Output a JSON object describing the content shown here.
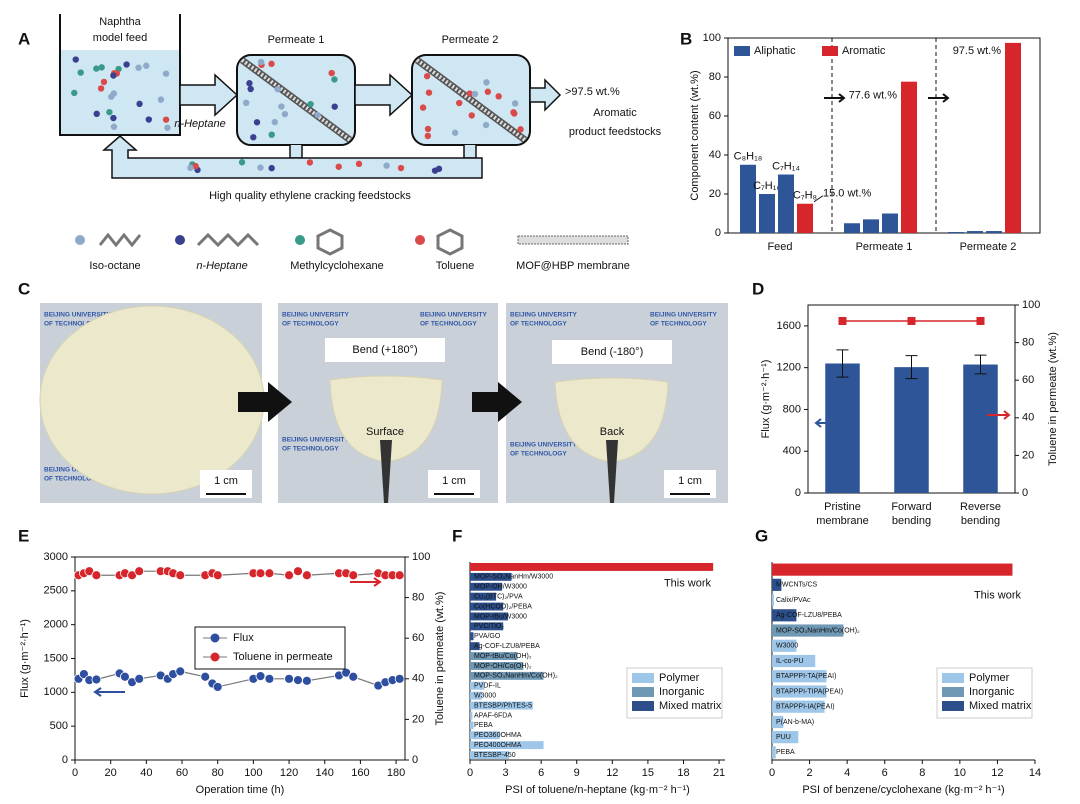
{
  "panel_a": {
    "label": "A",
    "feed": [
      "Naphtha",
      "model feed"
    ],
    "permeate_1": "Permeate 1",
    "permeate_2": "Permeate 2",
    "arrow_label": "n-Heptane",
    "product": [
      ">97.5 wt.%",
      "Aromatic",
      "product feedstocks"
    ],
    "recycle": "High quality ethylene cracking feedstocks",
    "legend": [
      "Iso-octane",
      "n-Heptane",
      "Methylcyclohexane",
      "Toluene",
      "MOF@HBP membrane"
    ]
  },
  "panel_c": {
    "label": "C",
    "watermark": [
      "BEIJING UNIVERSITY",
      "OF TECHNOLOGY"
    ],
    "photos": [
      {
        "scale": "1 cm"
      },
      {
        "title": "Bend (+180°)",
        "caption": "Surface",
        "scale": "1 cm"
      },
      {
        "title": "Bend (-180°)",
        "caption": "Back",
        "scale": "1 cm"
      }
    ]
  },
  "chart_data": [
    {
      "label": "B",
      "type": "grouped_bar",
      "ylabel": "Component content (wt.%)",
      "ylim": [
        0,
        100
      ],
      "yticks": [
        0,
        20,
        40,
        60,
        80,
        100
      ],
      "categories": [
        "Feed",
        "Permeate 1",
        "Permeate 2"
      ],
      "series": [
        {
          "name": "Aliphatic",
          "color": "#2e5597",
          "values": [
            [
              35,
              20,
              30
            ],
            [
              5,
              7,
              10
            ],
            [
              0.5,
              1,
              1
            ]
          ],
          "bar_labels": [
            "C₈H₁₈",
            "C₇H₁₆",
            "C₇H₁₄"
          ]
        },
        {
          "name": "Aromatic",
          "color": "#d7262b",
          "values": [
            15,
            77.6,
            97.5
          ],
          "value_labels": [
            "15.0 wt.%",
            "77.6 wt.%",
            "97.5 wt.%"
          ],
          "bar_labels": [
            "C₇H₈"
          ]
        }
      ]
    },
    {
      "label": "D",
      "type": "bar",
      "categories": [
        [
          "Pristine",
          "membrane"
        ],
        [
          "Forward",
          "bending"
        ],
        [
          "Reverse",
          "bending"
        ]
      ],
      "ylabel": "Flux (g·m⁻²·h⁻¹)",
      "ylim": [
        0,
        1800
      ],
      "yticks": [
        0,
        400,
        800,
        1200,
        1600
      ],
      "y2label": "Toluene in permeate (wt.%)",
      "y2lim": [
        0,
        100
      ],
      "y2ticks": [
        0,
        20,
        40,
        60,
        80,
        100
      ],
      "series": [
        {
          "color": "#2e5597",
          "values": [
            1240,
            1205,
            1230
          ],
          "errors": [
            130,
            110,
            90
          ]
        },
        {
          "axis": "y2",
          "color": "#d7262b",
          "values": [
            91.5,
            91.5,
            91.5
          ]
        }
      ]
    },
    {
      "label": "E",
      "type": "line",
      "xlabel": "Operation time (h)",
      "ylabel": "Flux (g·m⁻²·h⁻¹)",
      "y2label": "Toluene in permeate (wt.%)",
      "xlim": [
        0,
        185
      ],
      "xticks": [
        0,
        20,
        40,
        60,
        80,
        100,
        120,
        140,
        160,
        180
      ],
      "ylim": [
        0,
        3000
      ],
      "yticks": [
        0,
        500,
        1000,
        1500,
        2000,
        2500,
        3000
      ],
      "y2lim": [
        0,
        100
      ],
      "y2ticks": [
        0,
        20,
        40,
        60,
        80,
        100
      ],
      "x": [
        2,
        5,
        8,
        12,
        25,
        28,
        32,
        36,
        48,
        52,
        55,
        59,
        73,
        77,
        80,
        100,
        104,
        109,
        120,
        125,
        130,
        148,
        152,
        156,
        170,
        174,
        178,
        182
      ],
      "series": [
        {
          "name": "Flux",
          "color": "#2e4fa0",
          "values": [
            1200,
            1270,
            1180,
            1190,
            1280,
            1230,
            1150,
            1200,
            1250,
            1200,
            1270,
            1310,
            1230,
            1130,
            1080,
            1200,
            1240,
            1200,
            1200,
            1180,
            1170,
            1250,
            1290,
            1230,
            1100,
            1150,
            1180,
            1200
          ]
        },
        {
          "name": "Toluene in permeate",
          "axis": "y2",
          "color": "#d7262b",
          "values": [
            91,
            92,
            93,
            91,
            91,
            92,
            91,
            93,
            93,
            93,
            92,
            91,
            91,
            92,
            91,
            92,
            92,
            92,
            91,
            93,
            91,
            92,
            92,
            91,
            92,
            91,
            91,
            91
          ]
        }
      ]
    },
    {
      "label": "F",
      "type": "hbar",
      "xlabel": "PSI of toluene/n-heptane (kg·m⁻² h⁻¹)",
      "xlim": [
        0,
        21.5
      ],
      "xticks": [
        0,
        3,
        6,
        9,
        12,
        15,
        18,
        21
      ],
      "highlight_color": "#d7262b",
      "legend": [
        {
          "name": "Polymer",
          "color": "#9dc6e8"
        },
        {
          "name": "Inorganic",
          "color": "#6f98b4"
        },
        {
          "name": "Mixed matrix",
          "color": "#2c4f8c"
        }
      ],
      "categories": [
        "This work",
        "MOP-SO₃NanHm/W3000",
        "MOP-OH/W3000",
        "Cu₃(BTC)₂/PVA",
        "Co(HCOO)₂/PEBA",
        "MOP-tBu/W3000",
        "PVC/TiO₂",
        "PVA/GO",
        "Ag-COF-LZU8/PEBA",
        "MOP-tBu/Co(OH)₂",
        "MOP-OH/Co(OH)₂",
        "MOP-SO₃NanHm/Co(OH)₂",
        "PVDF-IL",
        "W3000",
        "BTESBP/PhTES-5",
        "APAF-6FDA",
        "PEBA",
        "PEO360OHMA",
        "PEO400OHMA",
        "BTESBP-450"
      ],
      "values": [
        20.5,
        3.5,
        2.7,
        2.2,
        2.8,
        3.2,
        2.8,
        0.3,
        0.8,
        4.0,
        4.5,
        6.2,
        1.2,
        1.0,
        5.3,
        0.2,
        0.3,
        2.5,
        6.2,
        3.3
      ],
      "kinds": [
        null,
        2,
        2,
        2,
        2,
        2,
        2,
        2,
        2,
        1,
        1,
        1,
        0,
        0,
        0,
        0,
        0,
        0,
        0,
        0
      ]
    },
    {
      "label": "G",
      "type": "hbar",
      "xlabel": "PSI of benzene/cyclohexane (kg·m⁻² h⁻¹)",
      "xlim": [
        0,
        14
      ],
      "xticks": [
        0,
        2,
        4,
        6,
        8,
        10,
        12,
        14
      ],
      "highlight_color": "#d7262b",
      "legend": [
        {
          "name": "Polymer",
          "color": "#9dc6e8"
        },
        {
          "name": "Inorganic",
          "color": "#6f98b4"
        },
        {
          "name": "Mixed matrix",
          "color": "#2c4f8c"
        }
      ],
      "categories": [
        "This work",
        "MWCNTs/CS",
        "Calix/PVAc",
        "Ag-COF-LZU8/PEBA",
        "MOP-SO₃NanHm/Co(OH)₂",
        "W3000",
        "IL-co-PU",
        "BTAPPPI-TA(PEAI)",
        "BTAPPPI-TIPA(PEAI)",
        "BTAPPPI-IA(PEAI)",
        "P(AN-b-MA)",
        "PUU",
        "PEBA"
      ],
      "values": [
        12.8,
        0.5,
        0.1,
        1.3,
        3.8,
        1.3,
        2.3,
        2.9,
        2.9,
        2.8,
        0.6,
        1.4,
        0.2
      ],
      "kinds": [
        null,
        2,
        0,
        2,
        1,
        0,
        0,
        0,
        0,
        0,
        0,
        0,
        0
      ]
    }
  ]
}
